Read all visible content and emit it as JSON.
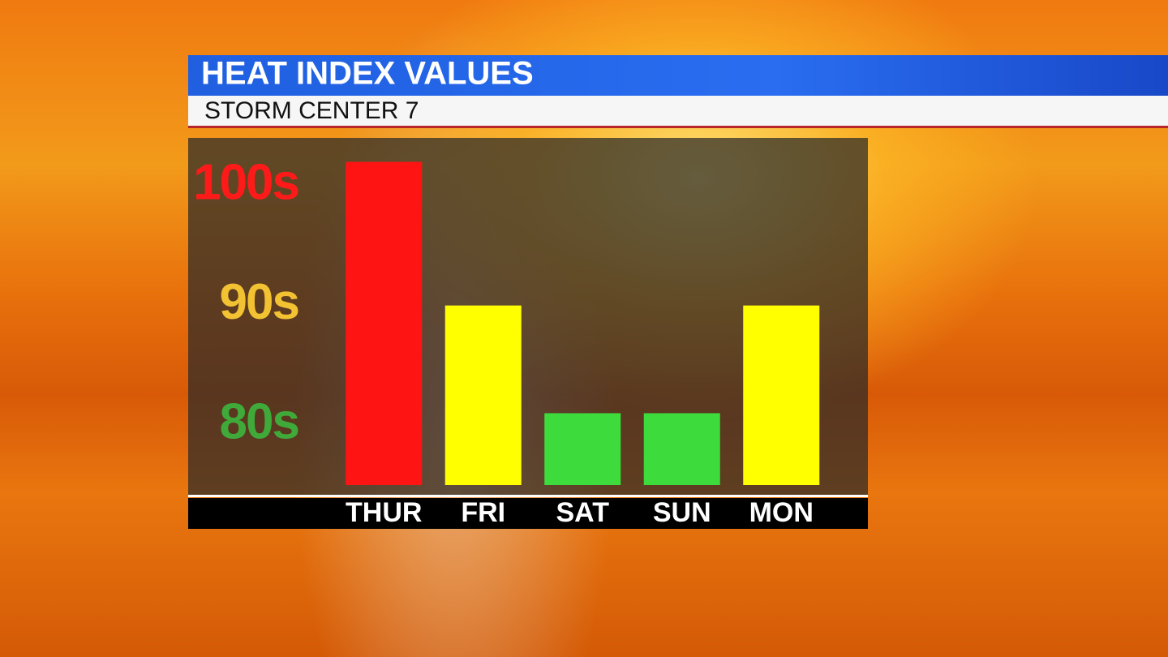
{
  "chart_data": {
    "type": "bar",
    "title": "HEAT INDEX VALUES",
    "subtitle": "STORM CENTER 7",
    "categories": [
      "THUR",
      "FRI",
      "SAT",
      "SUN",
      "MON"
    ],
    "values": [
      102,
      90,
      81,
      81,
      90
    ],
    "colors": [
      "#ff1414",
      "#ffff00",
      "#3ddc3c",
      "#3ddc3c",
      "#ffff00"
    ],
    "ylim": [
      75,
      104
    ],
    "yticks": [
      {
        "value": 100,
        "label": "100s"
      },
      {
        "value": 90,
        "label": "90s"
      },
      {
        "value": 80,
        "label": "80s"
      }
    ],
    "ytick_colors": [
      "#ff1a1a",
      "#f2c232",
      "#3faa3a"
    ]
  }
}
